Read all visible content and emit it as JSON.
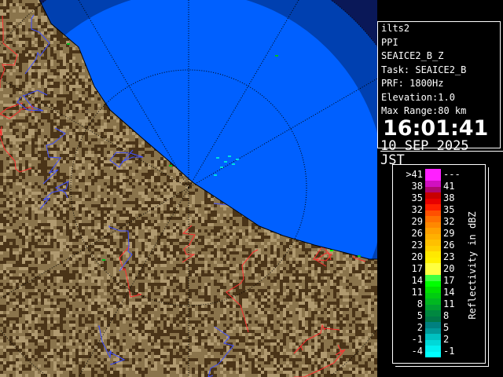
{
  "info": {
    "site": "ilts2",
    "mode": "PPI",
    "product": "SEAICE2_B_Z",
    "task": "Task: SEAICE2_B",
    "prf": "PRF: 1800Hz",
    "elevation": "Elevation:1.0",
    "max_range": "Max Range:80 km",
    "time": "16:01:41",
    "date": "10 SEP 2025 JST"
  },
  "legend": {
    "unit": "Reflectivity in dBZ",
    "rows": [
      {
        "low": ">41",
        "high": "---",
        "colors": [
          "#ff20ff",
          "#ff20ff"
        ]
      },
      {
        "low": "38",
        "high": "41",
        "colors": [
          "#d010c0",
          "#b00870"
        ]
      },
      {
        "low": "35",
        "high": "38",
        "colors": [
          "#c80000",
          "#e80000"
        ]
      },
      {
        "low": "32",
        "high": "35",
        "colors": [
          "#ff2000",
          "#ff5000"
        ]
      },
      {
        "low": "29",
        "high": "32",
        "colors": [
          "#ff7000",
          "#ff8800"
        ]
      },
      {
        "low": "26",
        "high": "29",
        "colors": [
          "#ffa000",
          "#ffb000"
        ]
      },
      {
        "low": "23",
        "high": "26",
        "colors": [
          "#ffc000",
          "#ffd000"
        ]
      },
      {
        "low": "20",
        "high": "23",
        "colors": [
          "#ffe800",
          "#fff000"
        ]
      },
      {
        "low": "17",
        "high": "20",
        "colors": [
          "#ffff40",
          "#ffff40"
        ]
      },
      {
        "low": "14",
        "high": "17",
        "colors": [
          "#40ff40",
          "#00ff00"
        ]
      },
      {
        "low": "11",
        "high": "14",
        "colors": [
          "#00e000",
          "#00cc10"
        ]
      },
      {
        "low": "8",
        "high": "11",
        "colors": [
          "#00b820",
          "#00a030"
        ]
      },
      {
        "low": "5",
        "high": "8",
        "colors": [
          "#008840",
          "#007848"
        ]
      },
      {
        "low": "2",
        "high": "5",
        "colors": [
          "#008080",
          "#009898"
        ]
      },
      {
        "low": "-1",
        "high": "2",
        "colors": [
          "#00c0c0",
          "#00d8d8"
        ]
      },
      {
        "low": "-4",
        "high": "-1",
        "colors": [
          "#00f0f0",
          "#00ffff"
        ]
      }
    ]
  },
  "colors": {
    "outside": "#0a1858",
    "far_ring": "#0040b0",
    "coverage": "#0060ff",
    "land_dark": "#4a3418",
    "land_light": "#b09a70",
    "rivers": "#4050ff",
    "borders": "#ff3030"
  }
}
